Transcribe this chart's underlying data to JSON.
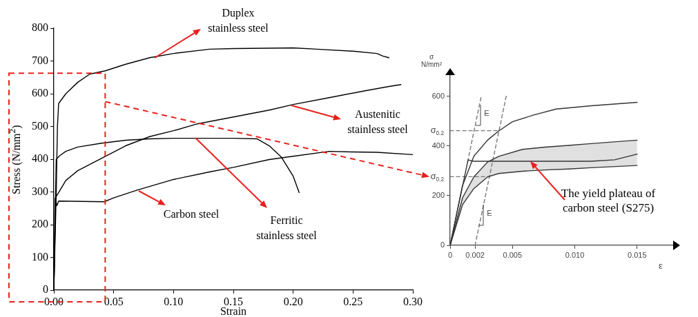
{
  "chart_data": [
    {
      "type": "line",
      "xlabel": "Strain",
      "ylabel": "Stress (N/mm$^{2}$)",
      "xlim": [
        0,
        0.3
      ],
      "ylim": [
        0,
        800
      ],
      "xticks": [
        {
          "value": 0,
          "label": "0.00"
        },
        {
          "value": 0.05,
          "label": "0.05"
        },
        {
          "value": 0.1,
          "label": "0.10"
        },
        {
          "value": 0.15,
          "label": "0.15"
        },
        {
          "value": 0.2,
          "label": "0.20"
        },
        {
          "value": 0.25,
          "label": "0.25"
        },
        {
          "value": 0.3,
          "label": "0.30"
        }
      ],
      "yticks": [
        0,
        100,
        200,
        300,
        400,
        500,
        600,
        700,
        800
      ],
      "grid": false,
      "legend": false,
      "marker": "none",
      "series": [
        {
          "name": "Duplex stainless steel",
          "color": "#000000",
          "x": [
            0,
            0.002,
            0.003,
            0.004,
            0.01,
            0.02,
            0.03,
            0.043,
            0.06,
            0.08,
            0.1,
            0.13,
            0.15,
            0.2,
            0.22,
            0.25,
            0.27,
            0.275,
            0.28
          ],
          "values": [
            0,
            300,
            500,
            570,
            600,
            635,
            660,
            670,
            690,
            710,
            723,
            736,
            738,
            740,
            736,
            730,
            723,
            715,
            710
          ]
        },
        {
          "name": "Austenitic stainless steel",
          "color": "#000000",
          "x": [
            0,
            0.001,
            0.004,
            0.01,
            0.02,
            0.04,
            0.06,
            0.08,
            0.1,
            0.12,
            0.15,
            0.18,
            0.2,
            0.23,
            0.26,
            0.28,
            0.29
          ],
          "values": [
            0,
            280,
            298,
            335,
            365,
            403,
            441,
            469,
            487,
            508,
            529,
            550,
            567,
            588,
            609,
            622,
            628
          ]
        },
        {
          "name": "Ferritic stainless steel",
          "color": "#000000",
          "x": [
            0,
            0.002,
            0.005,
            0.01,
            0.02,
            0.04,
            0.06,
            0.08,
            0.1,
            0.15,
            0.17,
            0.18,
            0.19,
            0.2,
            0.205
          ],
          "values": [
            0,
            400,
            411,
            424,
            437,
            449,
            458,
            462,
            464,
            464,
            462,
            441,
            407,
            348,
            298
          ]
        },
        {
          "name": "Carbon steel",
          "color": "#000000",
          "x": [
            0,
            0.0015,
            0.0025,
            0.004,
            0.042,
            0.05,
            0.07,
            0.1,
            0.13,
            0.15,
            0.18,
            0.2,
            0.23,
            0.25,
            0.27,
            0.3
          ],
          "values": [
            0,
            275,
            258,
            272,
            270,
            282,
            306,
            338,
            361,
            375,
            399,
            409,
            424,
            422,
            421,
            414
          ]
        }
      ]
    },
    {
      "type": "line",
      "xlabel": "ε",
      "ylabel": "σ N/mm²",
      "xlim": [
        0,
        0.018
      ],
      "ylim": [
        0,
        690
      ],
      "xticks": [
        0,
        {
          "value": 0.002,
          "label": "0.002"
        },
        {
          "value": 0.005,
          "label": "0.005"
        },
        {
          "value": 0.01,
          "label": "0.010"
        },
        {
          "value": 0.015,
          "label": "0.015"
        }
      ],
      "yticks": [
        0,
        200,
        400,
        600
      ],
      "grid": false,
      "legend": false,
      "marker": "none",
      "annotations": [
        "E",
        "E",
        "The yield plateau of carbon steel (S275)"
      ],
      "series": [
        {
          "color": "#333333",
          "x": [
            0,
            0.00098,
            0.0019,
            0.003,
            0.0039,
            0.005,
            0.0067,
            0.0085,
            0.0113,
            0.015
          ],
          "values": [
            0,
            238,
            358,
            423,
            460,
            497,
            524,
            548,
            561,
            575
          ]
        },
        {
          "color": "#333333",
          "x": [
            0,
            0.001,
            0.0019,
            0.003,
            0.0039,
            0.0058,
            0.0076,
            0.0095,
            0.0113,
            0.015
          ],
          "values": [
            0,
            192,
            275,
            335,
            358,
            386,
            395,
            402,
            409,
            423
          ]
        },
        {
          "color": "#333333",
          "x": [
            0,
            0.001,
            0.0019,
            0.003,
            0.0039,
            0.0058,
            0.0076,
            0.0095,
            0.0113,
            0.015
          ],
          "values": [
            0,
            164,
            228,
            275,
            289,
            298,
            303,
            307,
            312,
            321
          ]
        },
        {
          "type": "area",
          "color": "#e0e0e0",
          "x": [
            0,
            0.001,
            0.0019,
            0.003,
            0.0039,
            0.0058,
            0.0076,
            0.0095,
            0.0113,
            0.015
          ],
          "values": [
            null,
            null,
            null,
            null,
            null,
            null,
            null,
            null,
            null,
            null
          ],
          "lower": [
            0,
            164,
            228,
            275,
            289,
            298,
            303,
            307,
            312,
            321
          ],
          "upper": [
            0,
            192,
            275,
            335,
            358,
            386,
            395,
            402,
            409,
            423
          ]
        },
        {
          "color": "#333333",
          "x": [
            0,
            0.00144,
            0.0017,
            0.0019,
            0.0113,
            0.0132,
            0.015
          ],
          "values": [
            0,
            344,
            340,
            338,
            338,
            344,
            367
          ]
        },
        {
          "name": "σ$_{0.2}$",
          "color": "#777777",
          "line_style": "dashed",
          "x": [
            0,
            0.0039
          ],
          "values": [
            461,
            461
          ]
        },
        {
          "name": "σ$_{0.2}$",
          "color": "#777777",
          "line_style": "dashed",
          "x": [
            0,
            0.003
          ],
          "values": [
            276,
            276
          ]
        },
        {
          "color": "#777777",
          "line_style": "dashed",
          "x": [
            0.0014,
            0.0025
          ],
          "values": [
            336,
            600
          ]
        },
        {
          "color": "#777777",
          "line_style": "dashed",
          "x": [
            0.002,
            0.0045
          ],
          "values": [
            0,
            600
          ]
        }
      ]
    }
  ]
}
